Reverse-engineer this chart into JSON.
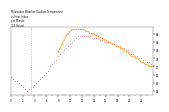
{
  "title": "Milwaukee Weather Outdoor Temperature\nvs Heat Index\nper Minute\n(24 Hours)",
  "ylim": [
    56,
    89
  ],
  "xlim": [
    0,
    1439
  ],
  "bg_color": "#ffffff",
  "temp_color": "#dd0000",
  "heat_color": "#ff8800",
  "vline_x": 200,
  "vline_color": "#888888",
  "temp_data_x": [
    0,
    20,
    40,
    60,
    80,
    100,
    120,
    140,
    160,
    180,
    200,
    220,
    240,
    260,
    280,
    300,
    320,
    340,
    360,
    380,
    400,
    420,
    440,
    460,
    480,
    500,
    520,
    540,
    560,
    580,
    600,
    620,
    640,
    660,
    680,
    700,
    720,
    740,
    760,
    780,
    800,
    820,
    840,
    860,
    880,
    900,
    920,
    940,
    960,
    980,
    1000,
    1020,
    1040,
    1060,
    1080,
    1100,
    1120,
    1140,
    1160,
    1180,
    1200,
    1220,
    1240,
    1260,
    1280,
    1300,
    1320,
    1340,
    1360,
    1380,
    1400,
    1420,
    1439
  ],
  "temp_data_y": [
    65,
    64,
    63,
    63,
    62,
    61,
    60,
    59,
    58,
    59,
    59,
    60,
    61,
    62,
    63,
    64,
    65,
    66,
    67,
    68,
    70,
    71,
    72,
    73,
    75,
    76,
    77,
    78,
    79,
    80,
    81,
    82,
    83,
    84,
    85,
    85,
    85,
    85,
    85,
    85,
    85,
    84,
    84,
    84,
    84,
    83,
    83,
    82,
    82,
    82,
    82,
    81,
    81,
    80,
    80,
    80,
    79,
    79,
    78,
    78,
    77,
    76,
    76,
    75,
    75,
    74,
    74,
    73,
    73,
    72,
    72,
    71,
    70
  ],
  "heat_data_x": [
    480,
    500,
    520,
    540,
    560,
    580,
    600,
    620,
    640,
    660,
    680,
    700,
    720,
    740,
    760,
    780,
    800,
    820,
    840,
    860,
    880,
    900,
    920,
    940,
    960,
    980,
    1000,
    1020,
    1040,
    1060,
    1080,
    1100,
    1120,
    1140,
    1160,
    1180,
    1200,
    1220,
    1240,
    1260,
    1280,
    1300,
    1320,
    1340,
    1360,
    1380,
    1400,
    1420,
    1439
  ],
  "heat_data_y": [
    77,
    79,
    81,
    83,
    85,
    86,
    87,
    88,
    88,
    88,
    88,
    88,
    88,
    88,
    87,
    87,
    86,
    86,
    86,
    85,
    85,
    84,
    84,
    83,
    83,
    82,
    82,
    81,
    81,
    80,
    80,
    79,
    79,
    78,
    77,
    77,
    76,
    75,
    75,
    74,
    74,
    73,
    72,
    72,
    71,
    71,
    70,
    70,
    70
  ],
  "yticks": [
    58,
    62,
    66,
    70,
    74,
    78,
    82,
    86
  ],
  "xtick_spacing": 120
}
